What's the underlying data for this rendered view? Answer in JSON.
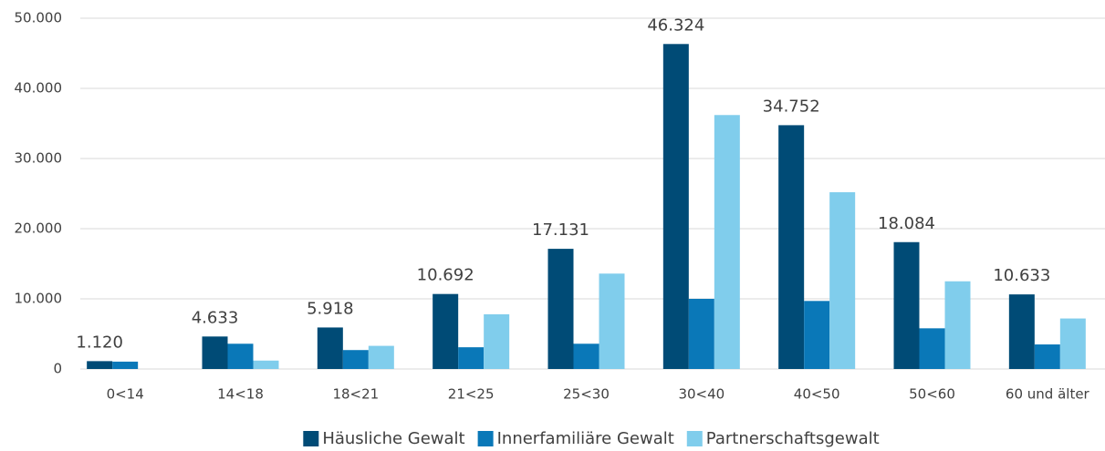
{
  "chart_data": {
    "type": "bar",
    "categories": [
      "0<14",
      "14<18",
      "18<21",
      "21<25",
      "25<30",
      "30<40",
      "40<50",
      "50<60",
      "60 und älter"
    ],
    "series": [
      {
        "name": "Häusliche Gewalt",
        "color": "#004b76",
        "values": [
          1120,
          4633,
          5918,
          10692,
          17131,
          46324,
          34752,
          18084,
          10633
        ],
        "value_labels": [
          "1.120",
          "4.633",
          "5.918",
          "10.692",
          "17.131",
          "46.324",
          "34.752",
          "18.084",
          "10.633"
        ]
      },
      {
        "name": "Innerfamiliäre Gewalt",
        "color": "#0a78b8",
        "values": [
          1050,
          3600,
          2700,
          3100,
          3600,
          10000,
          9700,
          5800,
          3500
        ]
      },
      {
        "name": "Partnerschaftsgewalt",
        "color": "#80cdec",
        "values": [
          0,
          1200,
          3300,
          7800,
          13600,
          36200,
          25200,
          12500,
          7200
        ]
      }
    ],
    "ylim": [
      0,
      50000
    ],
    "yticks": [
      0,
      {
        "value": 10000,
        "label": "10.000"
      },
      {
        "value": 20000,
        "label": "20.000"
      },
      {
        "value": 30000,
        "label": "30.000"
      },
      {
        "value": 40000,
        "label": "40.000"
      },
      {
        "value": 50000,
        "label": "50.000"
      }
    ],
    "grid": true,
    "legend": "bottom"
  }
}
